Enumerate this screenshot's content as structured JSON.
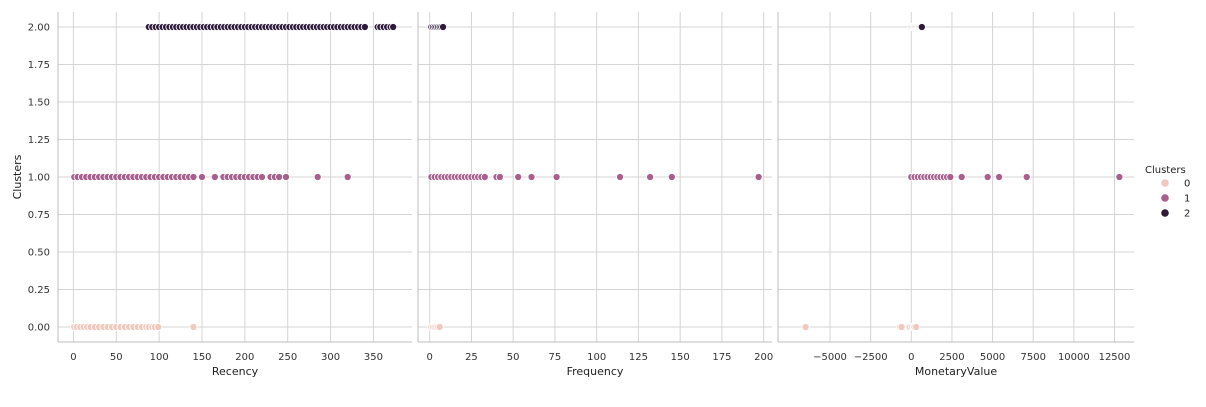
{
  "chart_data": {
    "type": "scatter",
    "ylabel": "Clusters",
    "shared_y": {
      "ylim": [
        -0.1,
        2.1
      ],
      "ticks": [
        0.0,
        0.25,
        0.5,
        0.75,
        1.0,
        1.25,
        1.5,
        1.75,
        2.0
      ],
      "tick_labels": [
        "0.00",
        "0.25",
        "0.50",
        "0.75",
        "1.00",
        "1.25",
        "1.50",
        "1.75",
        "2.00"
      ]
    },
    "grid": true,
    "legend": {
      "title": "Clusters",
      "placement": "right",
      "entries": [
        {
          "label": "0",
          "color": "#f0c9be"
        },
        {
          "label": "1",
          "color": "#a95f8e"
        },
        {
          "label": "2",
          "color": "#2e1a3a"
        }
      ]
    },
    "panels": [
      {
        "xlabel": "Recency",
        "xlim": [
          -18,
          395
        ],
        "xticks": [
          0,
          50,
          100,
          150,
          200,
          250,
          300,
          350
        ],
        "series": [
          {
            "cluster": 0,
            "x": [
              1,
              4,
              8,
              12,
              16,
              20,
              25,
              30,
              35,
              40,
              45,
              50,
              55,
              60,
              65,
              70,
              75,
              80,
              85,
              88,
              92,
              95,
              99,
              140
            ]
          },
          {
            "cluster": 1,
            "x": [
              1,
              5,
              10,
              15,
              20,
              25,
              30,
              35,
              40,
              45,
              50,
              55,
              60,
              65,
              70,
              75,
              80,
              85,
              90,
              95,
              100,
              105,
              110,
              115,
              120,
              125,
              130,
              135,
              140,
              150,
              165,
              175,
              180,
              185,
              190,
              195,
              200,
              205,
              210,
              215,
              220,
              230,
              235,
              240,
              248,
              285,
              320
            ]
          },
          {
            "cluster": 2,
            "x": [
              88,
              92,
              96,
              100,
              104,
              108,
              112,
              116,
              120,
              124,
              128,
              132,
              136,
              140,
              144,
              148,
              152,
              156,
              160,
              164,
              168,
              172,
              176,
              180,
              184,
              188,
              192,
              196,
              200,
              204,
              208,
              212,
              216,
              220,
              224,
              228,
              232,
              236,
              240,
              244,
              248,
              252,
              256,
              260,
              264,
              268,
              272,
              276,
              280,
              284,
              288,
              292,
              296,
              300,
              304,
              308,
              312,
              316,
              320,
              324,
              328,
              332,
              336,
              340,
              355,
              358,
              362,
              366,
              370,
              373
            ]
          }
        ]
      },
      {
        "xlabel": "Frequency",
        "xlim": [
          -7,
          205
        ],
        "xticks": [
          0,
          25,
          50,
          75,
          100,
          125,
          150,
          175,
          200
        ],
        "series": [
          {
            "cluster": 0,
            "x": [
              1,
              2,
              3,
              4,
              5,
              6
            ]
          },
          {
            "cluster": 1,
            "x": [
              1,
              3,
              5,
              7,
              9,
              11,
              13,
              15,
              17,
              19,
              21,
              23,
              25,
              27,
              29,
              31,
              33,
              40,
              42,
              53,
              61,
              76,
              114,
              132,
              145,
              197
            ]
          },
          {
            "cluster": 2,
            "x": [
              1,
              2,
              3,
              4,
              5,
              6,
              7,
              8
            ]
          }
        ]
      },
      {
        "xlabel": "MonetaryValue",
        "xlim": [
          -8200,
          13700
        ],
        "xticks": [
          -5000,
          -2500,
          0,
          2500,
          5000,
          7500,
          10000,
          12500
        ],
        "xtick_labels": [
          "−5000",
          "−2500",
          "0",
          "2500",
          "5000",
          "7500",
          "10000",
          "12500"
        ],
        "series": [
          {
            "cluster": 0,
            "x": [
              -6500,
              -700,
              -600,
              -100,
              50,
              150,
              200,
              300
            ]
          },
          {
            "cluster": 1,
            "x": [
              0,
              200,
              400,
              600,
              800,
              1000,
              1200,
              1400,
              1600,
              1800,
              2000,
              2200,
              2400,
              3100,
              4700,
              5400,
              7100,
              12800
            ]
          },
          {
            "cluster": 2,
            "x": [
              0,
              50,
              100,
              150,
              200,
              250,
              300,
              350,
              400,
              450,
              500,
              550,
              600,
              650
            ]
          }
        ]
      }
    ]
  }
}
